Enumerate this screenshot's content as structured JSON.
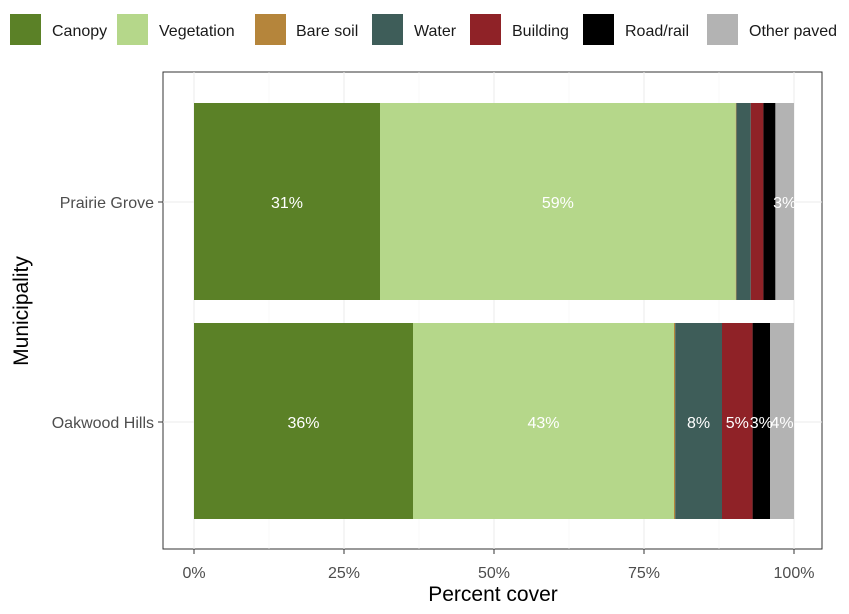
{
  "chart_data": {
    "type": "bar",
    "orientation": "horizontal",
    "stacked": true,
    "xlabel": "Percent cover",
    "ylabel": "Municipality",
    "xlim": [
      0,
      100
    ],
    "x_ticks": [
      "0%",
      "25%",
      "50%",
      "75%",
      "100%"
    ],
    "categories": [
      "Prairie Grove",
      "Oakwood Hills"
    ],
    "legend_position": "top",
    "grid": true,
    "series": [
      {
        "name": "Canopy",
        "color": "#5b8127",
        "values": [
          31,
          36.5
        ],
        "labels": [
          "31%",
          "36%"
        ]
      },
      {
        "name": "Vegetation",
        "color": "#b5d78a",
        "values": [
          59.3,
          43.5
        ],
        "labels": [
          "59%",
          "43%"
        ]
      },
      {
        "name": "Bare soil",
        "color": "#b5853b",
        "values": [
          0.1,
          0.2
        ],
        "labels": [
          "",
          ""
        ]
      },
      {
        "name": "Water",
        "color": "#3e5d59",
        "values": [
          2.4,
          7.8
        ],
        "labels": [
          "",
          "8%"
        ]
      },
      {
        "name": "Building",
        "color": "#8f2227",
        "values": [
          2.1,
          5.1
        ],
        "labels": [
          "",
          "5%"
        ]
      },
      {
        "name": "Road/rail",
        "color": "#000000",
        "values": [
          2.0,
          2.9
        ],
        "labels": [
          "",
          "3%"
        ]
      },
      {
        "name": "Other paved",
        "color": "#b3b3b3",
        "values": [
          3.1,
          4.0
        ],
        "labels": [
          "3%",
          "4%"
        ]
      }
    ]
  }
}
